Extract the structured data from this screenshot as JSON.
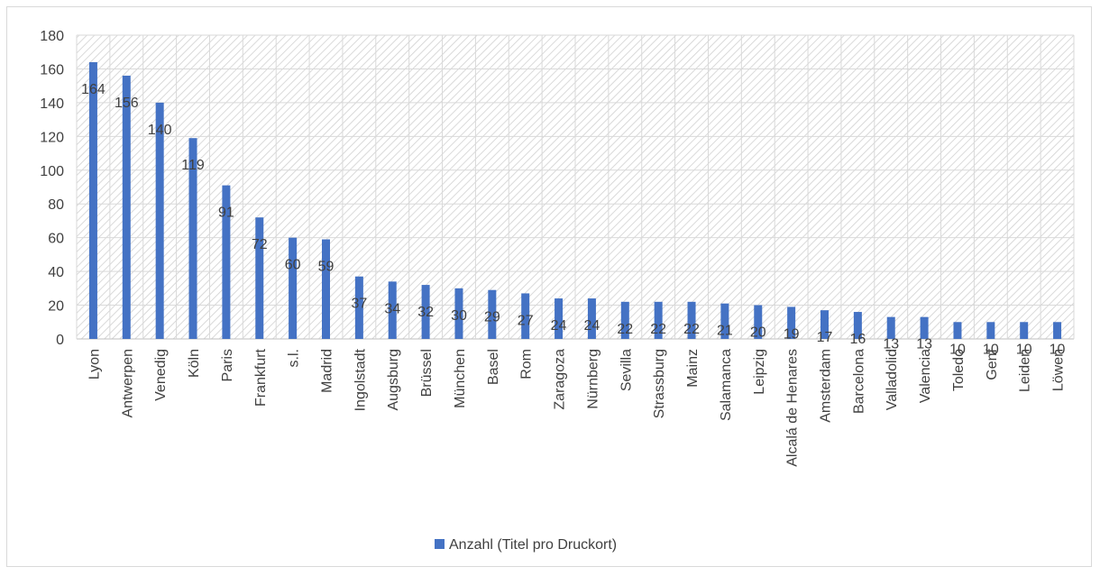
{
  "chart_data": {
    "type": "bar",
    "title": "",
    "xlabel": "",
    "ylabel": "",
    "ylim": [
      0,
      180
    ],
    "yticks": [
      0,
      20,
      40,
      60,
      80,
      100,
      120,
      140,
      160,
      180
    ],
    "grid": true,
    "legend_position": "bottom",
    "categories": [
      "Lyon",
      "Antwerpen",
      "Venedig",
      "Köln",
      "Paris",
      "Frankfurt",
      "s.l.",
      "Madrid",
      "Ingolstadt",
      "Augsburg",
      "Brüssel",
      "München",
      "Basel",
      "Rom",
      "Zaragoza",
      "Nürnberg",
      "Sevilla",
      "Strassburg",
      "Mainz",
      "Salamanca",
      "Leipzig",
      "Alcalá de Henares",
      "Amsterdam",
      "Barcelona",
      "Valladolid",
      "Valencia",
      "Toledo",
      "Genf",
      "Leiden",
      "Löwen"
    ],
    "series": [
      {
        "name": "Anzahl (Titel pro Druckort)",
        "color": "#4472c4",
        "values": [
          164,
          156,
          140,
          119,
          91,
          72,
          60,
          59,
          37,
          34,
          32,
          30,
          29,
          27,
          24,
          24,
          22,
          22,
          22,
          21,
          20,
          19,
          17,
          16,
          13,
          13,
          10,
          10,
          10,
          10
        ]
      }
    ]
  }
}
